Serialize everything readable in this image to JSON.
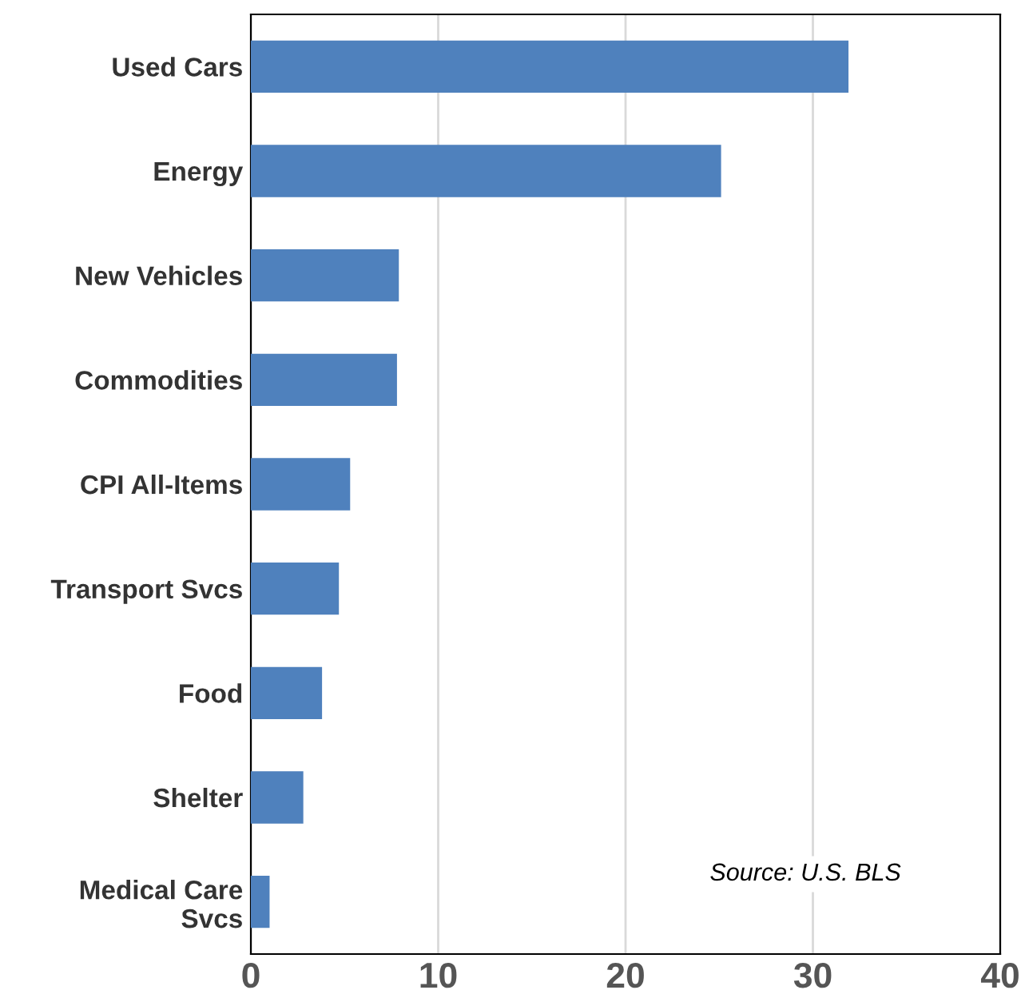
{
  "chart_data": {
    "type": "bar",
    "orientation": "horizontal",
    "categories": [
      "Used Cars",
      "Energy",
      "New Vehicles",
      "Commodities",
      "CPI All-Items",
      "Transport Svcs",
      "Food",
      "Shelter",
      "Medical Care\nSvcs"
    ],
    "values": [
      31.9,
      25.1,
      7.9,
      7.8,
      5.3,
      4.7,
      3.8,
      2.8,
      1.0
    ],
    "color": "#4f81bd",
    "xlim": [
      0,
      40
    ],
    "xticks": [
      0,
      10,
      20,
      30,
      40
    ],
    "grid": "x",
    "annotations": [
      "Source: U.S. BLS"
    ]
  }
}
